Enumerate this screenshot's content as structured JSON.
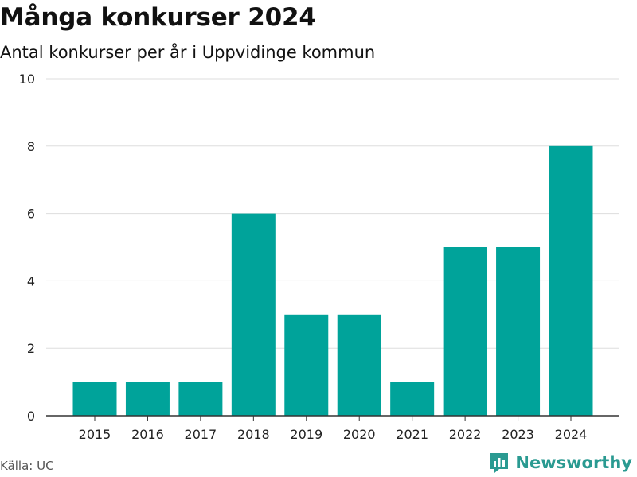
{
  "chart_data": {
    "type": "bar",
    "title": "Många konkurser 2024",
    "subtitle": "Antal konkurser per år i Uppvidinge kommun",
    "categories": [
      "2015",
      "2016",
      "2017",
      "2018",
      "2019",
      "2020",
      "2021",
      "2022",
      "2023",
      "2024"
    ],
    "values": [
      1,
      1,
      1,
      6,
      3,
      3,
      1,
      5,
      5,
      8
    ],
    "ylim": [
      0,
      10
    ],
    "yticks": [
      0,
      2,
      4,
      6,
      8,
      10
    ],
    "grid": true,
    "bar_color": "#00a39a",
    "xlabel": "",
    "ylabel": ""
  },
  "footer": {
    "source": "Källa: UC",
    "brand": "Newsworthy",
    "brand_icon": "newsworthy-logo-icon",
    "brand_color": "#2a9a91"
  }
}
